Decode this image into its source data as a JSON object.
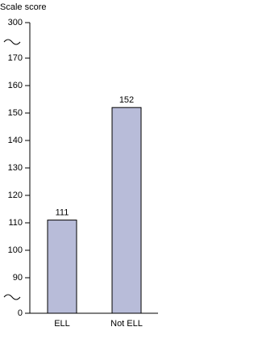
{
  "chart_data": {
    "type": "bar",
    "y_label": "Scale score",
    "categories": [
      "ELL",
      "Not ELL"
    ],
    "values": [
      111,
      152
    ],
    "color": "#b8bcd9",
    "ylim": [
      0,
      300
    ],
    "yticks": [
      0,
      90,
      100,
      110,
      120,
      130,
      140,
      150,
      160,
      170,
      300
    ],
    "y_breaks": [
      [
        0,
        90
      ],
      [
        170,
        300
      ]
    ]
  }
}
